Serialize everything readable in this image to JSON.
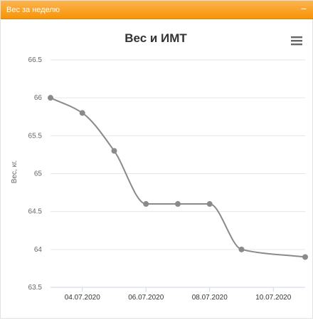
{
  "panel": {
    "title": "Вес за неделю",
    "collapse_icon": "minus-icon"
  },
  "chart_menu_icon": "hamburger-menu-icon",
  "chart_data": {
    "type": "line",
    "title": "Вес и ИМТ",
    "ylabel": "Вес, кг.",
    "xlabel": "",
    "ylim": [
      63.5,
      66.5
    ],
    "yticks": [
      63.5,
      64,
      64.5,
      65,
      65.5,
      66,
      66.5
    ],
    "x_range": [
      "2020-07-03",
      "2020-07-11"
    ],
    "xtick_labels": [
      "04.07.2020",
      "06.07.2020",
      "08.07.2020",
      "10.07.2020"
    ],
    "xtick_dates": [
      "2020-07-04",
      "2020-07-06",
      "2020-07-08",
      "2020-07-10"
    ],
    "grid": true,
    "line_color": "#8a8a8a",
    "series": [
      {
        "x": [
          "2020-07-03",
          "2020-07-04",
          "2020-07-05",
          "2020-07-06",
          "2020-07-07",
          "2020-07-08",
          "2020-07-09",
          "2020-07-11"
        ],
        "values": [
          66.0,
          65.8,
          65.3,
          64.6,
          64.6,
          64.6,
          64.0,
          63.9
        ]
      }
    ]
  }
}
